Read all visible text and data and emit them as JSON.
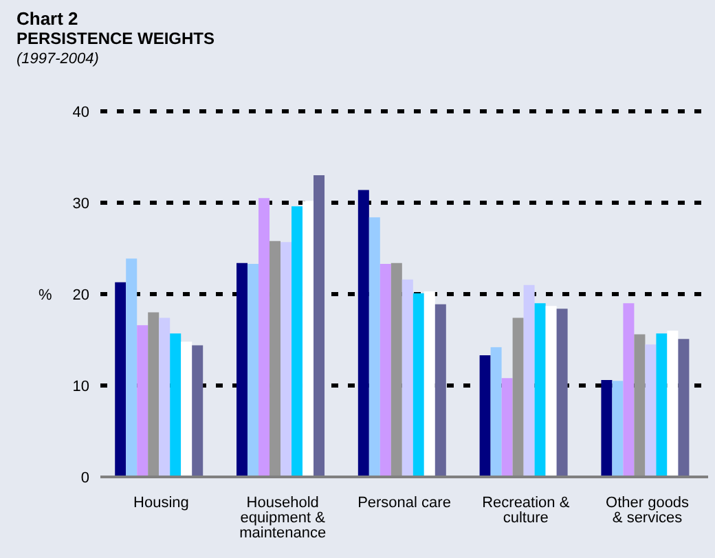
{
  "chart_data": {
    "type": "bar",
    "title": "Chart 2",
    "subtitle": "PERSISTENCE WEIGHTS",
    "annotations": [
      "(1997-2004)"
    ],
    "ylabel": "%",
    "categories": [
      "Housing",
      "Household equipment & maintenance",
      "Personal care",
      "Recreation & culture",
      "Other goods & services"
    ],
    "series": [
      {
        "color": "#000080",
        "values": [
          21.3,
          23.4,
          31.4,
          13.3,
          10.6
        ]
      },
      {
        "color": "#99ccff",
        "values": [
          23.9,
          23.3,
          28.4,
          14.2,
          10.5
        ]
      },
      {
        "color": "#cc99ff",
        "values": [
          16.6,
          30.5,
          23.3,
          10.8,
          19.0
        ]
      },
      {
        "color": "#969696",
        "values": [
          18.0,
          25.8,
          23.4,
          17.4,
          15.6
        ]
      },
      {
        "color": "#ccccff",
        "values": [
          17.4,
          25.7,
          21.6,
          21.0,
          14.5
        ]
      },
      {
        "color": "#00ccff",
        "values": [
          15.7,
          29.6,
          20.1,
          19.0,
          15.7
        ]
      },
      {
        "color": "#ffffff",
        "values": [
          14.8,
          30.2,
          20.3,
          18.7,
          16.0
        ]
      },
      {
        "color": "#666699",
        "values": [
          14.4,
          33.0,
          18.9,
          18.4,
          15.1
        ]
      }
    ],
    "ylim": [
      0,
      40
    ],
    "yticks": [
      0,
      10,
      20,
      30,
      40
    ],
    "grid": "y",
    "legend": false
  }
}
